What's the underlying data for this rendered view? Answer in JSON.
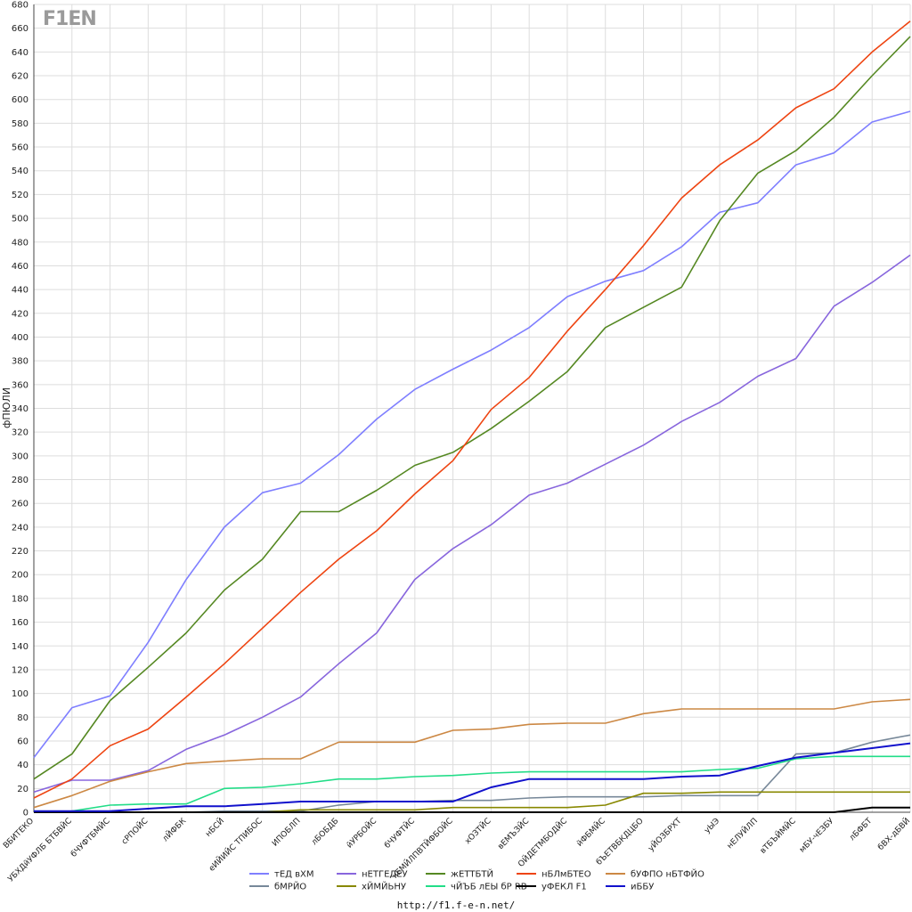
{
  "logo": {
    "text": "F1EN"
  },
  "footer": {
    "url": "http://f1.f-e-n.net/"
  },
  "chart_data": {
    "type": "line",
    "ylabel": "фПЮЛИ",
    "xlabel": "",
    "ylim": [
      0,
      680
    ],
    "yticks": [
      0,
      20,
      40,
      60,
      80,
      100,
      120,
      140,
      160,
      180,
      200,
      220,
      240,
      260,
      280,
      300,
      320,
      340,
      360,
      380,
      400,
      420,
      440,
      460,
      480,
      500,
      520,
      540,
      560,
      580,
      600,
      620,
      640,
      660,
      680
    ],
    "grid": true,
    "legend": "bottom",
    "categories": [
      "ВБИТЕКО",
      "УБХДйУФЛБ БТБВЙС",
      "бЧУФТБМЙС",
      "сРПОЙС",
      "лЙФБК",
      "нБСЙ",
      "еИЙИЙС ТПИБОС",
      "ИПОБЛП",
      "лБОБДБ",
      "йУРБОЙС",
      "бЧУФТЙС",
      "чЕМЙЛПВТЙФБОЙС",
      "хОЗТЙС",
      "вЕМЪЗЙС",
      "ОЙДЕТМБОДЙС",
      "йФБМЙС",
      "бЪЕТВБКДЦБО",
      "уЙОЗБРХТ",
      "уЫЭ",
      "нЕЛУЙЛП",
      "вТБЪЙМЙС",
      "мБУ-чЕЗБУ",
      "лБФБТ",
      "бВХ-дБВЙ"
    ],
    "series": [
      {
        "name": "тЕД вХМ",
        "color": "#7f7fff",
        "values": [
          46,
          88,
          98,
          143,
          196,
          240,
          269,
          277,
          301,
          331,
          356,
          373,
          389,
          408,
          434,
          447,
          456,
          476,
          505,
          513,
          545,
          555,
          581,
          590
        ]
      },
      {
        "name": "нЕТГЕДЕУ",
        "color": "#8866dd",
        "values": [
          17,
          27,
          27,
          35,
          53,
          65,
          80,
          97,
          125,
          151,
          196,
          222,
          242,
          267,
          277,
          293,
          309,
          329,
          345,
          367,
          382,
          426,
          446,
          469
        ]
      },
      {
        "name": "жЕТТБТЙ",
        "color": "#558822",
        "values": [
          28,
          49,
          94,
          122,
          151,
          187,
          213,
          253,
          253,
          271,
          292,
          303,
          323,
          346,
          371,
          408,
          425,
          442,
          498,
          538,
          557,
          585,
          620,
          653
        ]
      },
      {
        "name": "нБЛмБТЕО",
        "color": "#ee4411",
        "values": [
          12,
          28,
          56,
          70,
          97,
          125,
          155,
          185,
          213,
          237,
          268,
          296,
          339,
          366,
          405,
          440,
          477,
          517,
          545,
          566,
          593,
          609,
          640,
          666
        ]
      },
      {
        "name": "бУФПО нБТФЙО",
        "color": "#cc8844",
        "values": [
          4,
          14,
          26,
          34,
          41,
          43,
          45,
          45,
          59,
          59,
          59,
          69,
          70,
          74,
          75,
          75,
          83,
          87,
          87,
          87,
          87,
          87,
          93,
          95
        ]
      },
      {
        "name": "бМРЙО",
        "color": "#778899",
        "values": [
          0,
          0,
          0,
          0,
          0,
          1,
          1,
          1,
          6,
          9,
          9,
          10,
          10,
          12,
          13,
          13,
          13,
          14,
          14,
          14,
          49,
          50,
          59,
          65
        ]
      },
      {
        "name": "хЙМЙЬНУ",
        "color": "#888800",
        "values": [
          0,
          0,
          0,
          0,
          0,
          0,
          0,
          2,
          2,
          2,
          2,
          4,
          4,
          4,
          4,
          6,
          16,
          16,
          17,
          17,
          17,
          17,
          17,
          17
        ]
      },
      {
        "name": "чЙЪБ лЕЫ бР RB",
        "color": "#22dd88",
        "values": [
          0,
          1,
          6,
          7,
          7,
          20,
          21,
          24,
          28,
          28,
          30,
          31,
          33,
          34,
          34,
          34,
          34,
          34,
          36,
          37,
          45,
          47,
          47,
          47
        ]
      },
      {
        "name": "уФЕКЛ F1",
        "color": "#000000",
        "values": [
          0,
          0,
          0,
          0,
          0,
          0,
          0,
          0,
          0,
          0,
          0,
          0,
          0,
          0,
          0,
          0,
          0,
          0,
          0,
          0,
          0,
          0,
          4,
          4
        ]
      },
      {
        "name": "иББУ",
        "color": "#1111cc",
        "values": [
          1,
          1,
          1,
          3,
          5,
          5,
          7,
          9,
          9,
          9,
          9,
          9,
          21,
          28,
          28,
          28,
          28,
          30,
          31,
          39,
          46,
          50,
          54,
          58
        ]
      }
    ]
  }
}
